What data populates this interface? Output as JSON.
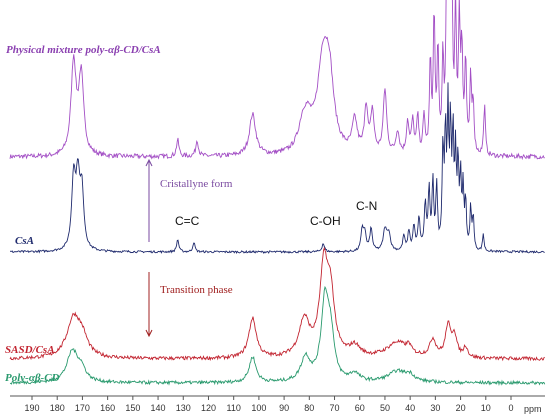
{
  "chart_data": {
    "type": "line",
    "title": "",
    "xlabel": "ppm",
    "xlim": [
      200,
      -10
    ],
    "reversed_x": true,
    "ticks": [
      190,
      180,
      170,
      160,
      150,
      140,
      130,
      120,
      110,
      100,
      90,
      80,
      70,
      60,
      50,
      40,
      30,
      20,
      10,
      0
    ],
    "series": [
      {
        "name": "Physical mixture poly-αβ-CD/CsA",
        "color": "#a34fc5",
        "noise": 0.05,
        "peaks": [
          [
            173.5,
            1.0,
            1.2
          ],
          [
            170.5,
            0.85,
            1.2
          ],
          [
            132.2,
            0.18,
            0.6
          ],
          [
            124.5,
            0.18,
            0.6
          ],
          [
            102.5,
            0.45,
            1.5
          ],
          [
            82.5,
            0.28,
            2.2
          ],
          [
            80.5,
            0.22,
            2.0
          ],
          [
            74.5,
            1.0,
            2.8
          ],
          [
            72.0,
            0.6,
            2.0
          ],
          [
            62.0,
            0.35,
            1.2
          ],
          [
            57.5,
            0.5,
            0.8
          ],
          [
            55.0,
            0.45,
            0.8
          ],
          [
            50.0,
            0.7,
            0.8
          ],
          [
            45.0,
            0.25,
            0.8
          ],
          [
            41.0,
            0.35,
            0.6
          ],
          [
            39.0,
            0.35,
            0.6
          ],
          [
            37.0,
            0.4,
            0.5
          ],
          [
            34.5,
            0.4,
            0.5
          ],
          [
            32.0,
            1.0,
            0.4
          ],
          [
            30.5,
            1.5,
            0.4
          ],
          [
            29.0,
            1.1,
            0.4
          ],
          [
            27.0,
            1.0,
            0.4
          ],
          [
            25.5,
            1.8,
            0.4
          ],
          [
            24.5,
            2.0,
            0.4
          ],
          [
            23.5,
            1.8,
            0.4
          ],
          [
            22.0,
            1.5,
            0.4
          ],
          [
            20.5,
            1.4,
            0.4
          ],
          [
            19.5,
            1.1,
            0.4
          ],
          [
            18.0,
            1.0,
            0.4
          ],
          [
            16.0,
            0.8,
            0.4
          ],
          [
            15.0,
            0.55,
            0.4
          ],
          [
            10.5,
            0.55,
            0.4
          ]
        ]
      },
      {
        "name": "CsA",
        "color": "#1f2a6d",
        "noise": 0.03,
        "peaks": [
          [
            173.5,
            1.0,
            0.9
          ],
          [
            171.8,
            0.95,
            0.9
          ],
          [
            170.2,
            0.8,
            0.9
          ],
          [
            132.2,
            0.18,
            0.5
          ],
          [
            125.8,
            0.14,
            0.5
          ],
          [
            74.5,
            0.12,
            0.6
          ],
          [
            59.0,
            0.3,
            0.6
          ],
          [
            58.0,
            0.25,
            0.6
          ],
          [
            55.5,
            0.32,
            0.6
          ],
          [
            50.0,
            0.3,
            0.8
          ],
          [
            48.5,
            0.25,
            0.8
          ],
          [
            42.5,
            0.22,
            0.5
          ],
          [
            40.5,
            0.28,
            0.5
          ],
          [
            38.5,
            0.35,
            0.5
          ],
          [
            36.5,
            0.45,
            0.5
          ],
          [
            34.0,
            0.65,
            0.5
          ],
          [
            32.5,
            0.85,
            0.4
          ],
          [
            31.0,
            0.95,
            0.4
          ],
          [
            29.5,
            0.9,
            0.4
          ],
          [
            27.0,
            1.4,
            0.4
          ],
          [
            26.0,
            1.6,
            0.35
          ],
          [
            25.0,
            1.9,
            0.35
          ],
          [
            24.0,
            1.7,
            0.35
          ],
          [
            23.0,
            1.6,
            0.35
          ],
          [
            22.0,
            1.3,
            0.35
          ],
          [
            21.0,
            1.2,
            0.35
          ],
          [
            20.0,
            1.0,
            0.35
          ],
          [
            19.0,
            0.85,
            0.35
          ],
          [
            18.0,
            0.7,
            0.35
          ],
          [
            16.0,
            0.6,
            0.35
          ],
          [
            15.0,
            0.5,
            0.35
          ],
          [
            11.0,
            0.25,
            0.35
          ]
        ]
      },
      {
        "name": "SASD/CsA",
        "color": "#c22430",
        "noise": 0.04,
        "peaks": [
          [
            173.5,
            0.45,
            3.2
          ],
          [
            170.0,
            0.18,
            2.5
          ],
          [
            102.5,
            0.45,
            1.8
          ],
          [
            82.0,
            0.42,
            2.5
          ],
          [
            74.2,
            1.0,
            2.0
          ],
          [
            71.5,
            0.6,
            1.8
          ],
          [
            62.0,
            0.12,
            2.5
          ],
          [
            45.0,
            0.18,
            5.0
          ],
          [
            40.5,
            0.08,
            1.0
          ],
          [
            31.0,
            0.2,
            1.5
          ],
          [
            25.0,
            0.35,
            1.2
          ],
          [
            22.5,
            0.25,
            1.2
          ],
          [
            18.0,
            0.12,
            1.0
          ]
        ]
      },
      {
        "name": "Poly-αβ-CD",
        "color": "#2a9a6e",
        "noise": 0.04,
        "peaks": [
          [
            174.0,
            0.38,
            2.6
          ],
          [
            170.5,
            0.15,
            2.2
          ],
          [
            102.5,
            0.32,
            1.6
          ],
          [
            81.5,
            0.3,
            2.2
          ],
          [
            73.8,
            1.0,
            1.8
          ],
          [
            71.5,
            0.5,
            1.6
          ],
          [
            62.0,
            0.1,
            2.2
          ],
          [
            45.0,
            0.14,
            4.5
          ],
          [
            40.0,
            0.07,
            2.0
          ]
        ]
      }
    ],
    "annotations": {
      "cristallyne": "Cristallyne form",
      "transition": "Transition phase",
      "cc": "C=C",
      "coh": "C-OH",
      "cn": "C-N"
    }
  }
}
